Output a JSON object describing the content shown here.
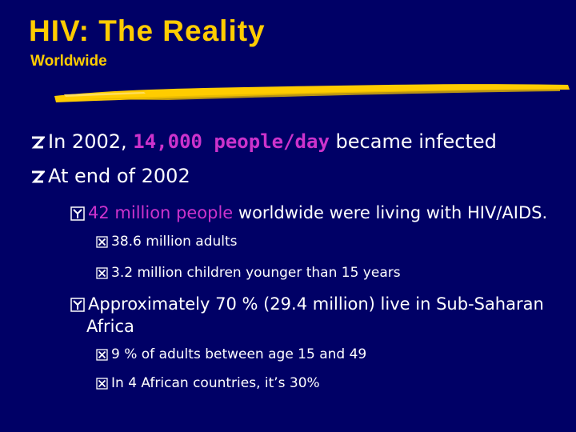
{
  "title": "HIV: The Reality",
  "subtitle": "Worldwide",
  "colors": {
    "background": "#000066",
    "title": "#FFCC00",
    "text": "#FFFFFF",
    "highlight": "#CC33CC",
    "bullet": "#FFFFFF"
  },
  "bullets": {
    "l1_a": {
      "pre": "In 2002, ",
      "hl": "14,000 people/day",
      "post": " became infected"
    },
    "l1_b": {
      "text": "At end of 2002"
    },
    "l2_a": {
      "hl": "42 million people",
      "post": " worldwide were living with HIV/AIDS."
    },
    "l3_a": {
      "text": "38.6 million adults"
    },
    "l3_b": {
      "text": "3.2 million children younger than 15 years"
    },
    "l2_b": {
      "line1": "Approximately 70 % (29.4 million) live in Sub-Saharan",
      "line2": "Africa"
    },
    "l3_c": {
      "text": "9 % of adults between age 15 and 49"
    },
    "l3_d": {
      "text": "In 4 African countries, it’s 30%"
    }
  },
  "icons": {
    "level1": "z-bullet-icon",
    "level2": "y-bullet-icon",
    "level3": "x-bullet-icon",
    "divider": "yellow-brush-stroke"
  }
}
